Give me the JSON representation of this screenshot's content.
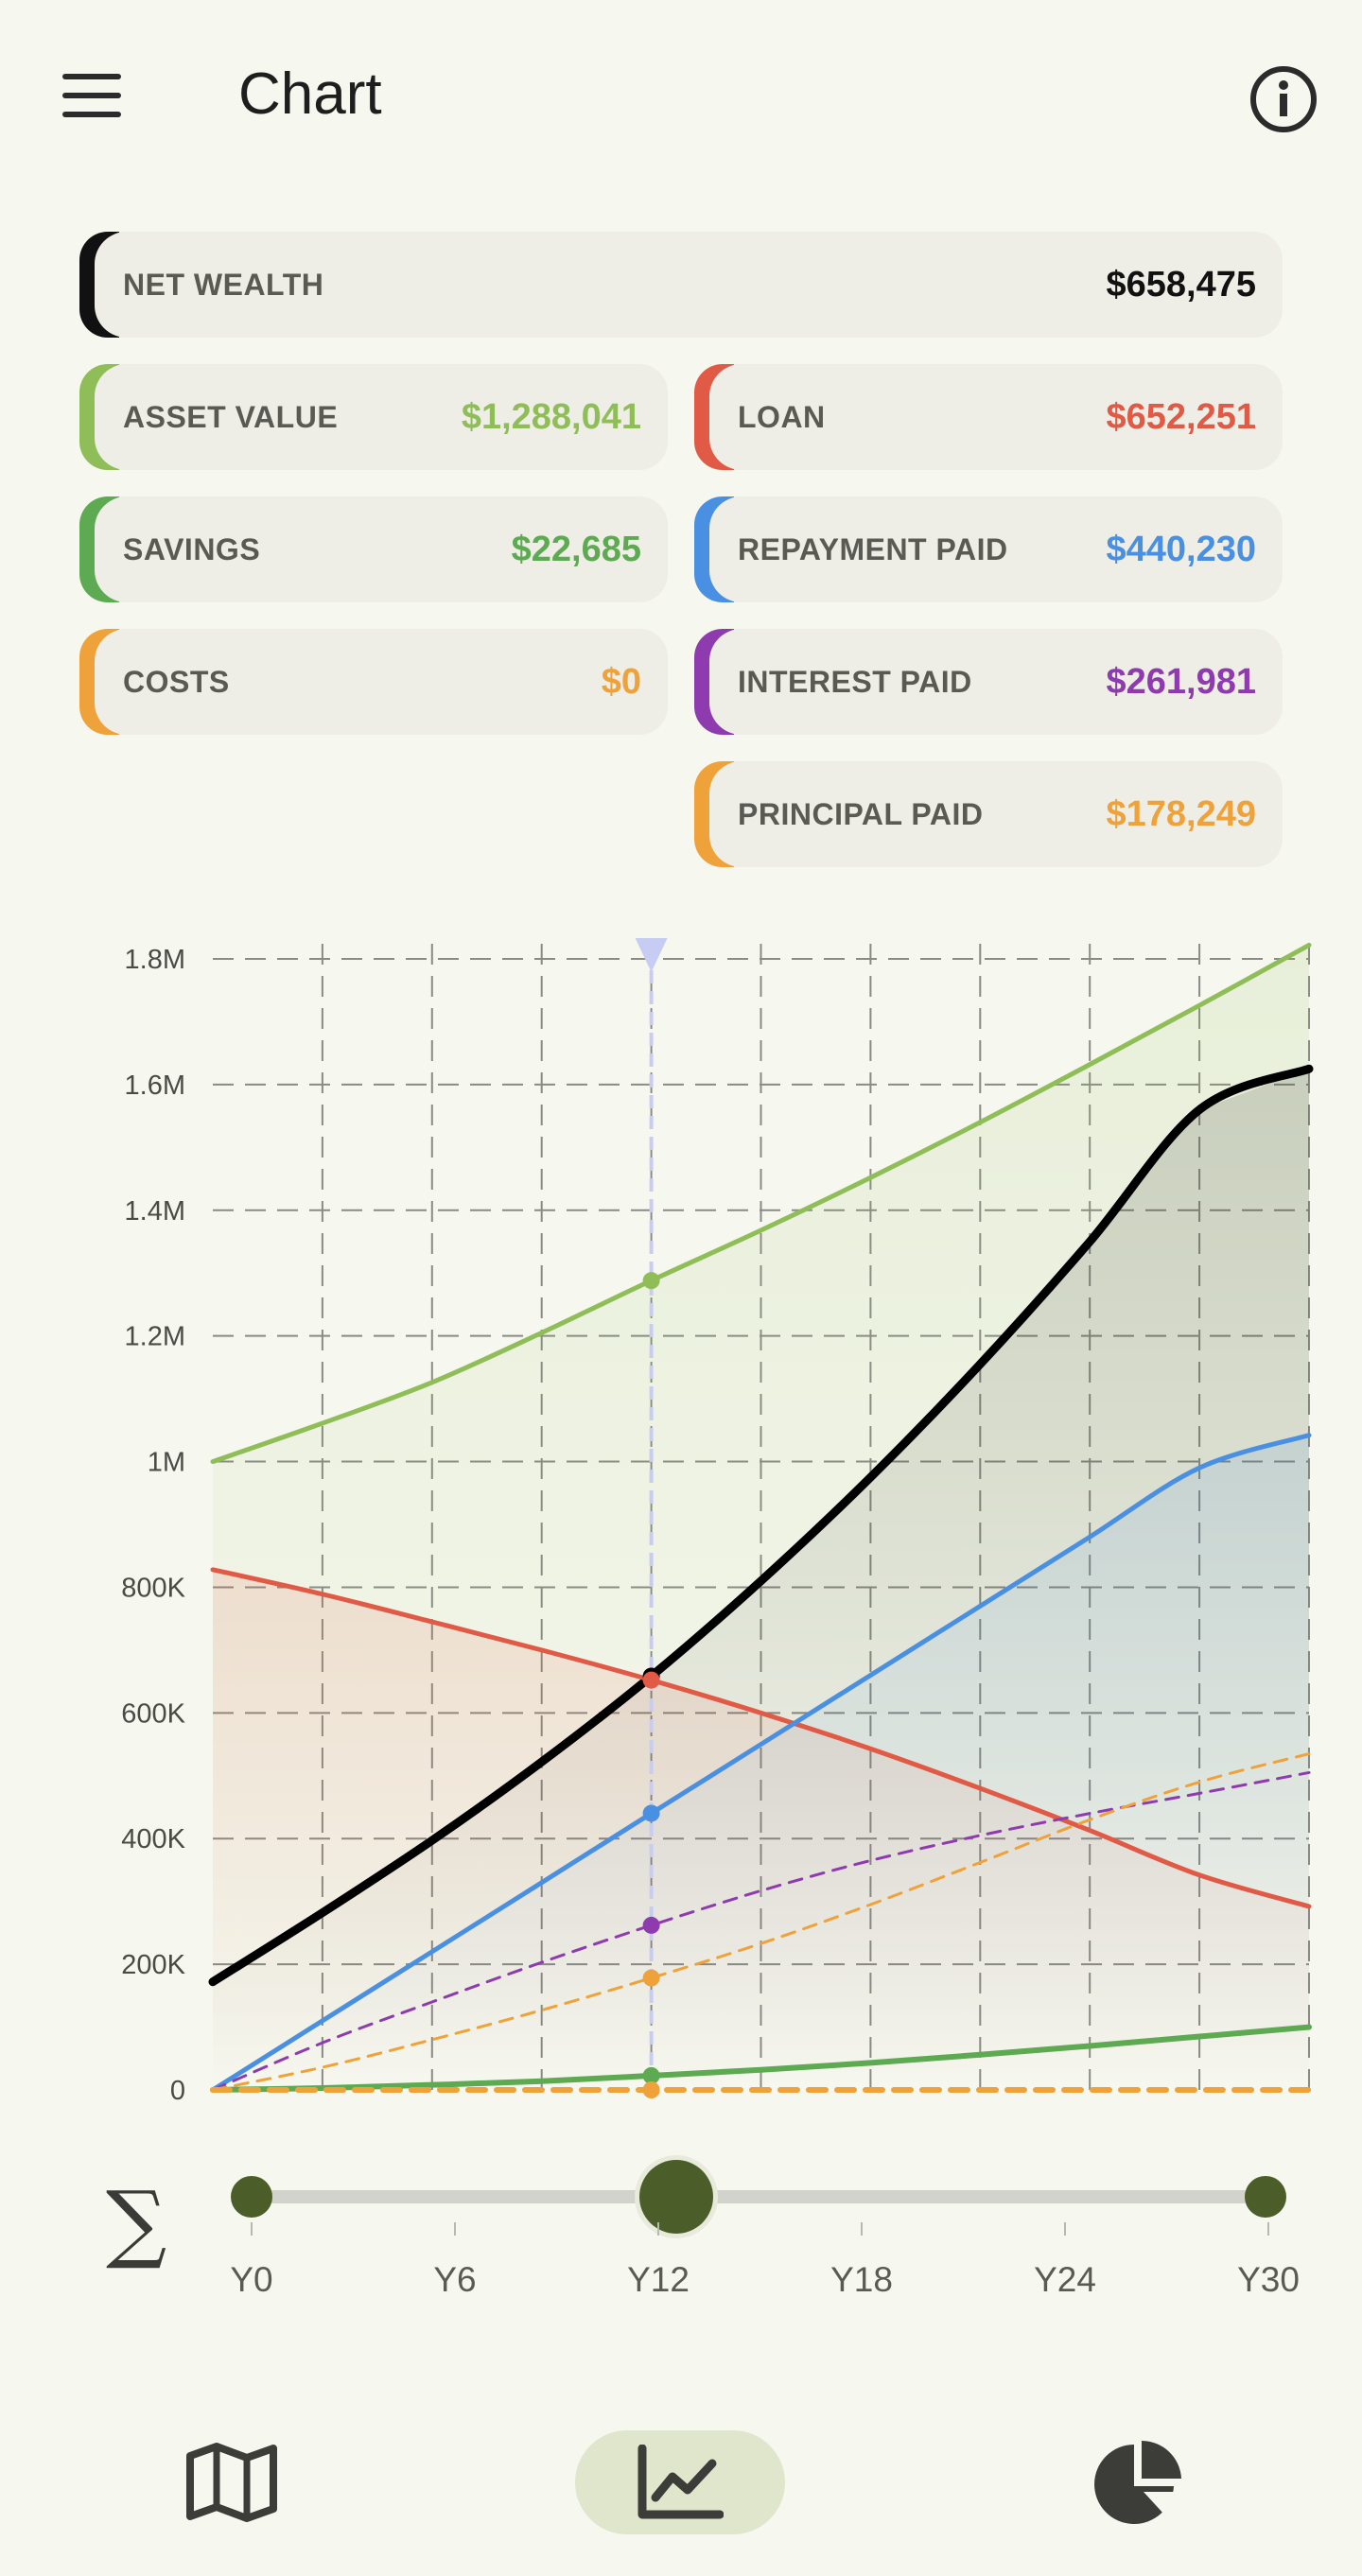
{
  "app": {
    "title": "Chart"
  },
  "stats": {
    "net_wealth": {
      "label": "NET WEALTH",
      "value": "$658,475",
      "color": "#111111"
    },
    "asset_value": {
      "label": "ASSET VALUE",
      "value": "$1,288,041",
      "color": "#8fbe58"
    },
    "loan": {
      "label": "LOAN",
      "value": "$652,251",
      "color": "#e05a45"
    },
    "savings": {
      "label": "SAVINGS",
      "value": "$22,685",
      "color": "#5eaa52"
    },
    "repayment_paid": {
      "label": "REPAYMENT PAID",
      "value": "$440,230",
      "color": "#4a90e2"
    },
    "costs": {
      "label": "COSTS",
      "value": "$0",
      "color": "#f0a23a"
    },
    "interest_paid": {
      "label": "INTEREST PAID",
      "value": "$261,981",
      "color": "#8e3bb0"
    },
    "principal_paid": {
      "label": "PRINCIPAL PAID",
      "value": "$178,249",
      "color": "#f0a23a"
    }
  },
  "chart_data": {
    "type": "line",
    "x": [
      0,
      3,
      6,
      9,
      12,
      15,
      18,
      21,
      24,
      27,
      30
    ],
    "xlim": [
      0,
      30
    ],
    "ylim": [
      0,
      1800000
    ],
    "yticks": [
      0,
      200000,
      400000,
      600000,
      800000,
      1000000,
      1200000,
      1400000,
      1600000,
      1800000
    ],
    "ytick_labels": [
      "0",
      "200K",
      "400K",
      "600K",
      "800K",
      "1M",
      "1.2M",
      "1.4M",
      "1.6M",
      "1.8M"
    ],
    "grid": true,
    "cursor_x": 12,
    "series": [
      {
        "key": "asset_value",
        "color": "#8fbe58",
        "width": 5,
        "dash": false,
        "fill": true,
        "values": [
          1000000,
          1061000,
          1126000,
          1205000,
          1288041,
          1368000,
          1452000,
          1540000,
          1632000,
          1726000,
          1822000
        ]
      },
      {
        "key": "net_wealth",
        "color": "#000000",
        "width": 9,
        "dash": false,
        "fill": true,
        "values": [
          172000,
          282000,
          397000,
          522000,
          658475,
          810000,
          975000,
          1155000,
          1350000,
          1560000,
          1625000
        ]
      },
      {
        "key": "loan",
        "color": "#e05a45",
        "width": 5,
        "dash": false,
        "fill": true,
        "values": [
          828000,
          789000,
          745000,
          700000,
          652251,
          600000,
          543000,
          480000,
          413000,
          342000,
          292000
        ]
      },
      {
        "key": "repayment_paid",
        "color": "#4a90e2",
        "width": 5,
        "dash": false,
        "fill": true,
        "values": [
          0,
          110000,
          220000,
          330000,
          440230,
          550000,
          660000,
          770000,
          880000,
          990000,
          1042000
        ]
      },
      {
        "key": "interest_paid",
        "color": "#8e3bb0",
        "width": 3,
        "dash": true,
        "fill": false,
        "values": [
          0,
          75000,
          140000,
          203000,
          261981,
          317000,
          365000,
          405000,
          440000,
          472000,
          505000
        ]
      },
      {
        "key": "principal_paid",
        "color": "#f0a23a",
        "width": 3,
        "dash": true,
        "fill": false,
        "values": [
          0,
          36000,
          80000,
          127000,
          178249,
          233000,
          295000,
          362000,
          430000,
          490000,
          535000
        ]
      },
      {
        "key": "savings",
        "color": "#5eaa52",
        "width": 6,
        "dash": false,
        "fill": false,
        "values": [
          0,
          3000,
          8000,
          14000,
          22685,
          32000,
          43000,
          56000,
          70000,
          85000,
          100000
        ]
      },
      {
        "key": "costs",
        "color": "#f0a23a",
        "width": 6,
        "dash": true,
        "fill": false,
        "values": [
          0,
          0,
          0,
          0,
          0,
          0,
          0,
          0,
          0,
          0,
          0
        ]
      }
    ]
  },
  "slider": {
    "sigma": "∑",
    "value": 12,
    "labels": [
      "Y0",
      "Y6",
      "Y12",
      "Y18",
      "Y24",
      "Y30"
    ]
  },
  "nav": {
    "items": [
      {
        "icon": "map-icon",
        "active": false
      },
      {
        "icon": "chart-line-icon",
        "active": true
      },
      {
        "icon": "pie-chart-icon",
        "active": false
      }
    ]
  }
}
